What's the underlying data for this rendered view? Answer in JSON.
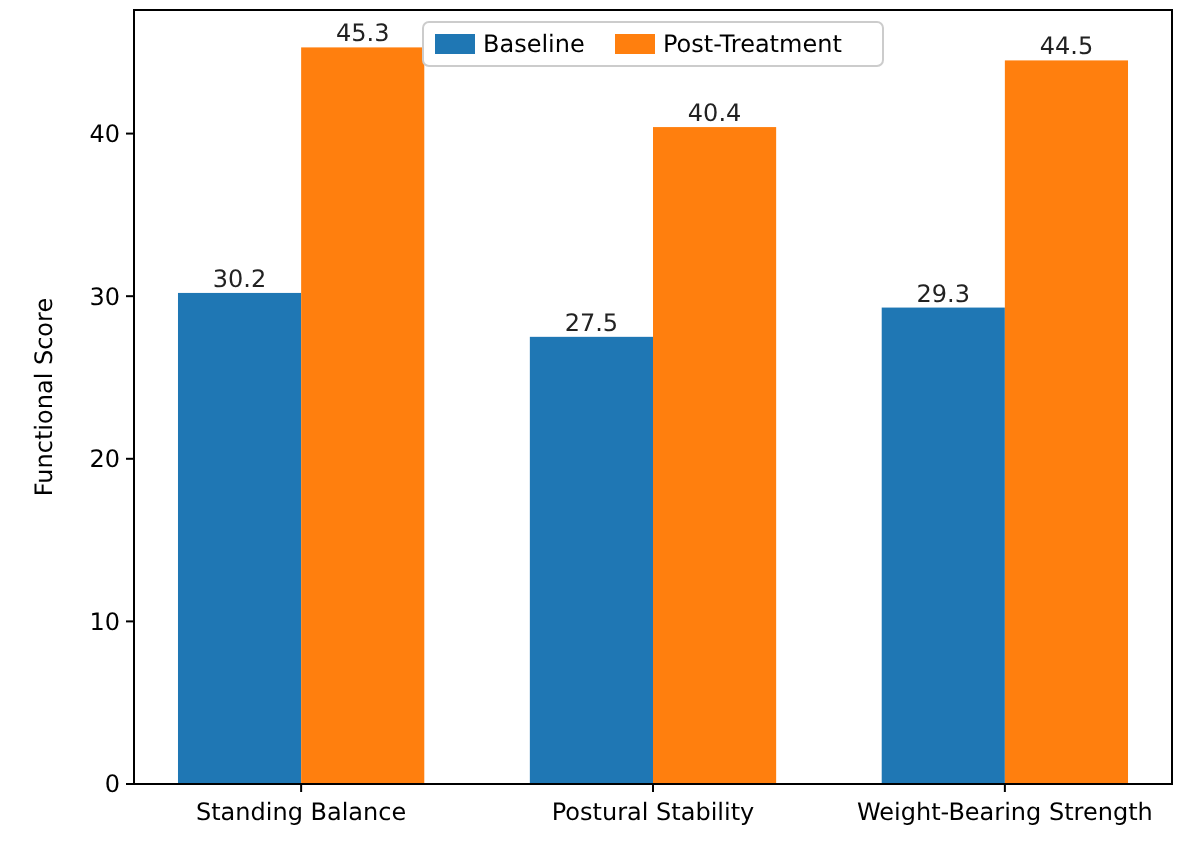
{
  "chart_data": {
    "type": "bar",
    "ylabel": "Functional Score",
    "categories": [
      "Standing Balance",
      "Postural Stability",
      "Weight-Bearing Strength"
    ],
    "series": [
      {
        "name": "Baseline",
        "color": "#1f77b4",
        "values": [
          30.2,
          27.5,
          29.3
        ]
      },
      {
        "name": "Post-Treatment",
        "color": "#ff7f0e",
        "values": [
          45.3,
          40.4,
          44.5
        ]
      }
    ],
    "ylim": [
      0,
      47.6
    ],
    "yticks": [
      0,
      10,
      20,
      30,
      40
    ],
    "data_labels": true,
    "legend": "top",
    "grid": false
  }
}
